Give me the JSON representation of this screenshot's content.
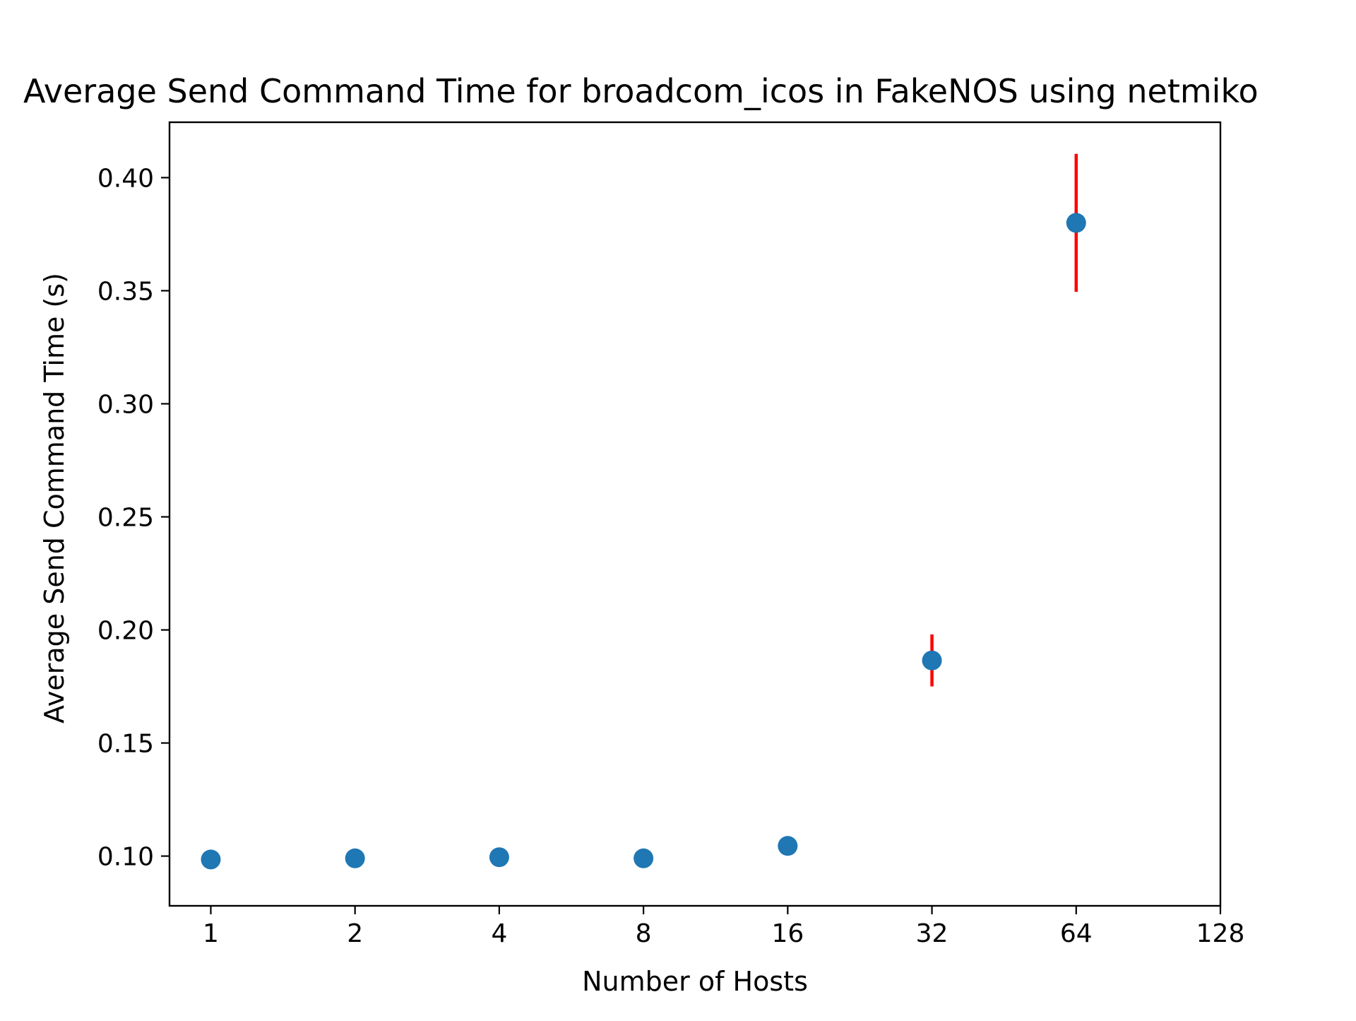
{
  "chart_data": {
    "type": "scatter",
    "title": "Average Send Command Time for broadcom_icos in FakeNOS using netmiko",
    "xlabel": "Number of Hosts",
    "ylabel": "Average Send Command Time (s)",
    "x_scale": "log2",
    "xlim": [
      0.82,
      128
    ],
    "ylim": [
      0.078,
      0.4245
    ],
    "x_ticks": [
      1,
      2,
      4,
      8,
      16,
      32,
      64,
      128
    ],
    "x_tick_labels": [
      "1",
      "2",
      "4",
      "8",
      "16",
      "32",
      "64",
      "128"
    ],
    "y_ticks": [
      0.1,
      0.15,
      0.2,
      0.25,
      0.3,
      0.35,
      0.4
    ],
    "y_tick_labels": [
      "0.10",
      "0.15",
      "0.20",
      "0.25",
      "0.30",
      "0.35",
      "0.40"
    ],
    "grid": false,
    "series": [
      {
        "name": "Average Send Command Time",
        "color": "#1f77b4",
        "error_color": "#ff0000",
        "points": [
          {
            "x": 1,
            "y": 0.0985,
            "err": 0
          },
          {
            "x": 2,
            "y": 0.099,
            "err": 0
          },
          {
            "x": 4,
            "y": 0.0995,
            "err": 0
          },
          {
            "x": 8,
            "y": 0.099,
            "err": 0
          },
          {
            "x": 16,
            "y": 0.1045,
            "err": 0
          },
          {
            "x": 32,
            "y": 0.1865,
            "err": 0.0115
          },
          {
            "x": 64,
            "y": 0.38,
            "err": 0.0305
          }
        ]
      }
    ]
  }
}
